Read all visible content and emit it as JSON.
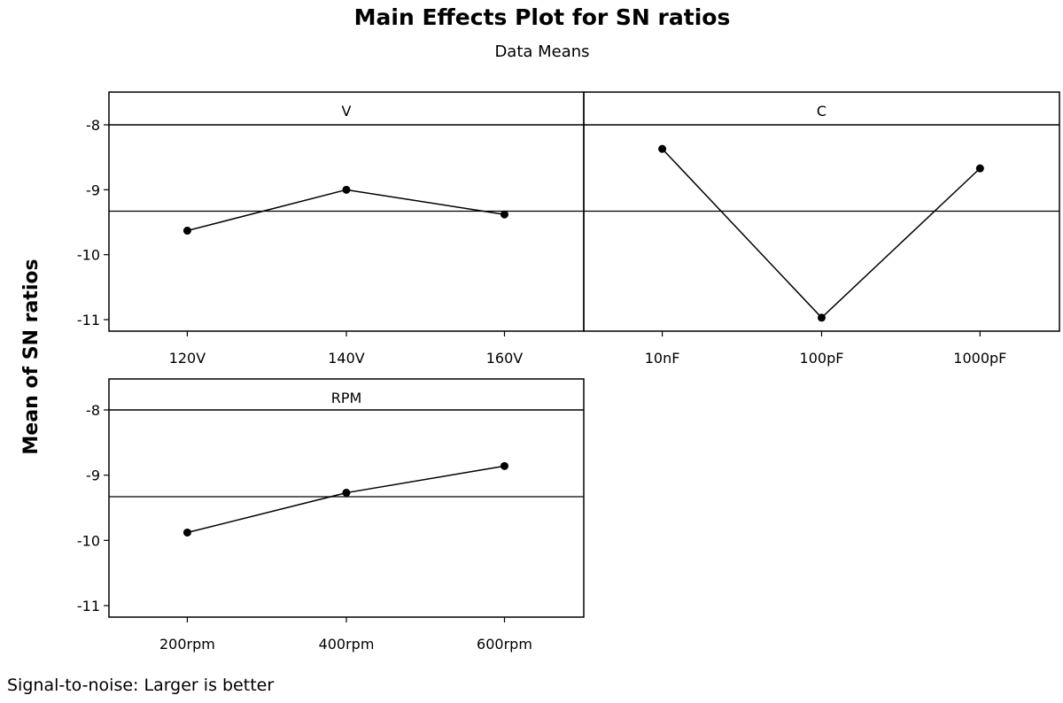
{
  "chart_data": {
    "type": "line",
    "title": "Main Effects Plot for SN ratios",
    "subtitle": "Data Means",
    "ylabel": "Mean of SN ratios",
    "footnote": "Signal-to-noise: Larger is better",
    "ylim": [
      -11,
      -8
    ],
    "yticks": [
      "-8",
      "-9",
      "-10",
      "-11"
    ],
    "overall_mean": -9.33,
    "panels": [
      {
        "name": "V",
        "categories": [
          "120V",
          "140V",
          "160V"
        ],
        "values": [
          -9.63,
          -9.0,
          -9.38
        ]
      },
      {
        "name": "C",
        "categories": [
          "10nF",
          "100pF",
          "1000pF"
        ],
        "values": [
          -8.37,
          -10.97,
          -8.67
        ]
      },
      {
        "name": "RPM",
        "categories": [
          "200rpm",
          "400rpm",
          "600rpm"
        ],
        "values": [
          -9.88,
          -9.27,
          -8.86
        ]
      }
    ]
  }
}
